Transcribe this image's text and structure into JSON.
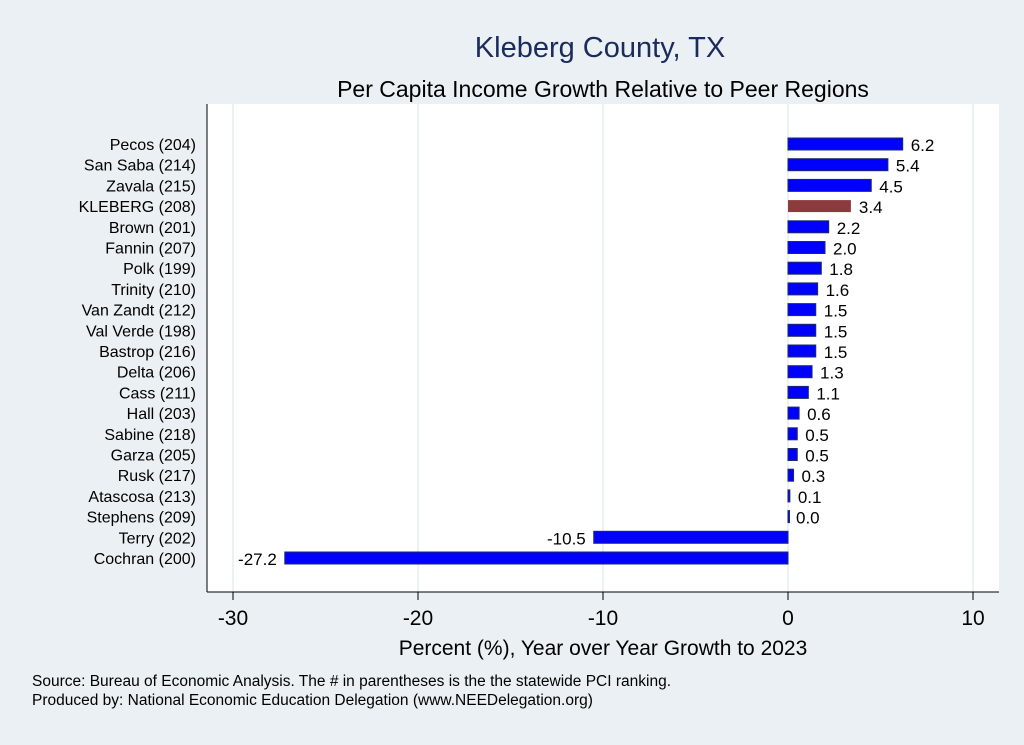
{
  "chart_data": {
    "type": "bar",
    "orientation": "horizontal",
    "title": "Kleberg County, TX",
    "subtitle": "Per Capita Income Growth Relative to Peer Regions",
    "xlabel": "Percent (%), Year over Year Growth to 2023",
    "ylabel": "",
    "xlim": [
      -31.5,
      11
    ],
    "xticks": [
      -30,
      -20,
      -10,
      0,
      10
    ],
    "grid": true,
    "categories": [
      "Pecos (204)",
      "San Saba (214)",
      "Zavala (215)",
      "KLEBERG (208)",
      "Brown (201)",
      "Fannin (207)",
      "Polk (199)",
      "Trinity (210)",
      "Van Zandt (212)",
      "Val Verde (198)",
      "Bastrop (216)",
      "Delta (206)",
      "Cass (211)",
      "Hall (203)",
      "Sabine (218)",
      "Garza (205)",
      "Rusk (217)",
      "Atascosa (213)",
      "Stephens (209)",
      "Terry (202)",
      "Cochran (200)"
    ],
    "values": [
      6.2,
      5.4,
      4.5,
      3.4,
      2.2,
      2.0,
      1.8,
      1.6,
      1.5,
      1.5,
      1.5,
      1.3,
      1.1,
      0.6,
      0.5,
      0.5,
      0.3,
      0.1,
      0.0,
      -10.5,
      -27.2
    ],
    "value_labels": [
      "6.2",
      "5.4",
      "4.5",
      "3.4",
      "2.2",
      "2.0",
      "1.8",
      "1.6",
      "1.5",
      "1.5",
      "1.5",
      "1.3",
      "1.1",
      "0.6",
      "0.5",
      "0.5",
      "0.3",
      "0.1",
      "0.0",
      "-10.5",
      "-27.2"
    ],
    "highlight_category": "KLEBERG (208)",
    "colors": {
      "bar": "#0000ff",
      "highlight": "#8b3a3e",
      "title": "#1a2b5c",
      "background": "#eaf0f3"
    }
  },
  "notes": [
    "Source: Bureau of Economic Analysis. The # in parentheses is the the statewide PCI ranking.",
    "Produced by: National Economic Education Delegation (www.NEEDelegation.org)"
  ]
}
